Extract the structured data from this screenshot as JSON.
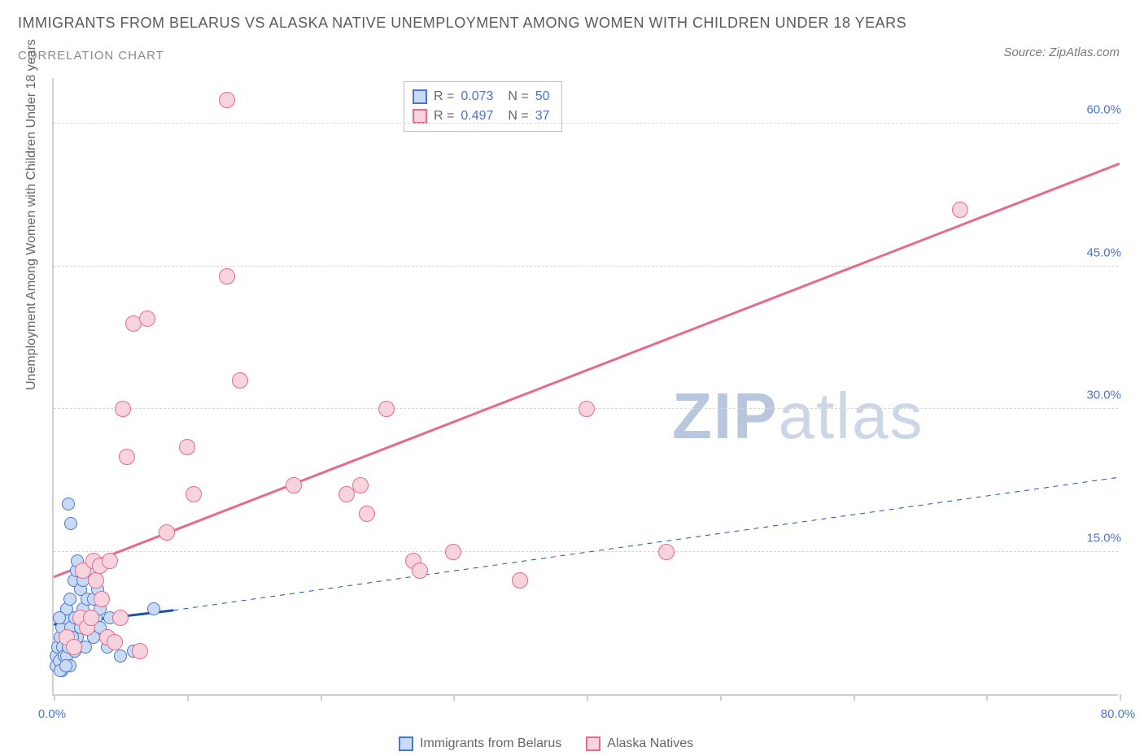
{
  "title": "IMMIGRANTS FROM BELARUS VS ALASKA NATIVE UNEMPLOYMENT AMONG WOMEN WITH CHILDREN UNDER 18 YEARS",
  "subtitle": "CORRELATION CHART",
  "source": "Source: ZipAtlas.com",
  "watermark_a": "ZIP",
  "watermark_b": "atlas",
  "chart": {
    "type": "scatter",
    "xlim": [
      0,
      80
    ],
    "ylim": [
      0,
      65
    ],
    "x_tick_positions": [
      0,
      10,
      20,
      30,
      40,
      50,
      60,
      70,
      80
    ],
    "x_tick_labels_shown": {
      "0": "0.0%",
      "80": "80.0%"
    },
    "y_ticks": [
      15,
      30,
      45,
      60
    ],
    "y_tick_labels": [
      "15.0%",
      "30.0%",
      "45.0%",
      "60.0%"
    ],
    "ylabel": "Unemployment Among Women with Children Under 18 years",
    "grid_color": "#d8d8d8",
    "axis_color": "#cfcfcf",
    "background_color": "#ffffff",
    "tick_label_color": "#4a74d4",
    "series": [
      {
        "name": "Immigrants from Belarus",
        "key": "belarus",
        "marker_fill": "#c9dbf3",
        "marker_stroke": "#4a74d4",
        "marker_size": 16,
        "R": "0.073",
        "N": "50",
        "trend": {
          "x1": 0,
          "y1": 7.5,
          "x2": 9,
          "y2": 9.0,
          "stroke": "#1f4fb3",
          "width": 3,
          "dash": "none",
          "ext_x2": 80,
          "ext_y2": 23,
          "ext_dash": "6,6",
          "ext_width": 1
        },
        "points": [
          [
            0.2,
            3
          ],
          [
            0.2,
            4
          ],
          [
            0.3,
            5
          ],
          [
            0.4,
            3.5
          ],
          [
            0.5,
            6
          ],
          [
            0.6,
            2.5
          ],
          [
            0.6,
            7
          ],
          [
            0.7,
            5
          ],
          [
            0.8,
            8
          ],
          [
            0.8,
            4
          ],
          [
            1.0,
            9
          ],
          [
            1.0,
            6
          ],
          [
            1.1,
            20
          ],
          [
            1.2,
            10
          ],
          [
            1.3,
            7
          ],
          [
            1.3,
            18
          ],
          [
            1.5,
            12
          ],
          [
            1.5,
            5
          ],
          [
            1.6,
            8
          ],
          [
            1.7,
            13
          ],
          [
            1.8,
            6
          ],
          [
            1.8,
            14
          ],
          [
            2.0,
            11
          ],
          [
            2.0,
            7
          ],
          [
            2.2,
            9
          ],
          [
            2.2,
            12
          ],
          [
            2.4,
            5
          ],
          [
            2.5,
            10
          ],
          [
            2.6,
            8
          ],
          [
            2.6,
            7
          ],
          [
            2.8,
            13
          ],
          [
            3.0,
            6
          ],
          [
            3.0,
            10
          ],
          [
            3.2,
            8
          ],
          [
            3.3,
            11
          ],
          [
            3.5,
            7
          ],
          [
            3.5,
            9
          ],
          [
            1.0,
            4
          ],
          [
            1.2,
            3
          ],
          [
            0.5,
            2.5
          ],
          [
            1.4,
            6
          ],
          [
            1.6,
            4.5
          ],
          [
            6.0,
            4.5
          ],
          [
            7.5,
            9
          ],
          [
            5.0,
            4
          ],
          [
            4.0,
            5
          ],
          [
            4.2,
            8
          ],
          [
            0.9,
            3
          ],
          [
            1.1,
            5
          ],
          [
            0.4,
            8
          ]
        ]
      },
      {
        "name": "Alaska Natives",
        "key": "alaska",
        "marker_fill": "#f7d4dd",
        "marker_stroke": "#e86a8b",
        "marker_size": 20,
        "R": "0.497",
        "N": "37",
        "trend": {
          "x1": 0,
          "y1": 12.5,
          "x2": 80,
          "y2": 56,
          "stroke": "#e86a8b",
          "width": 3,
          "dash": "none"
        },
        "points": [
          [
            1.0,
            6
          ],
          [
            1.5,
            5
          ],
          [
            2.0,
            8
          ],
          [
            2.2,
            13
          ],
          [
            2.5,
            7
          ],
          [
            3.0,
            14
          ],
          [
            3.2,
            12
          ],
          [
            3.5,
            13.5
          ],
          [
            4.0,
            6
          ],
          [
            4.2,
            14
          ],
          [
            5.5,
            25
          ],
          [
            6.0,
            39
          ],
          [
            7.0,
            39.5
          ],
          [
            5.2,
            30
          ],
          [
            8.5,
            17
          ],
          [
            10,
            26
          ],
          [
            10.5,
            21
          ],
          [
            13,
            44
          ],
          [
            13,
            62.5
          ],
          [
            14,
            33
          ],
          [
            18,
            22
          ],
          [
            22,
            21
          ],
          [
            23,
            22
          ],
          [
            23.5,
            19
          ],
          [
            25,
            30
          ],
          [
            27,
            14
          ],
          [
            27.5,
            13
          ],
          [
            30,
            15
          ],
          [
            35,
            12
          ],
          [
            40,
            30
          ],
          [
            46,
            15
          ],
          [
            68,
            51
          ],
          [
            2.8,
            8
          ],
          [
            3.6,
            10
          ],
          [
            4.6,
            5.5
          ],
          [
            6.5,
            4.5
          ],
          [
            5.0,
            8
          ]
        ]
      }
    ],
    "legend": {
      "items": [
        {
          "label": "Immigrants from Belarus",
          "fill": "#c9dbf3",
          "stroke": "#4a74d4"
        },
        {
          "label": "Alaska Natives",
          "fill": "#f7d4dd",
          "stroke": "#e86a8b"
        }
      ]
    }
  }
}
